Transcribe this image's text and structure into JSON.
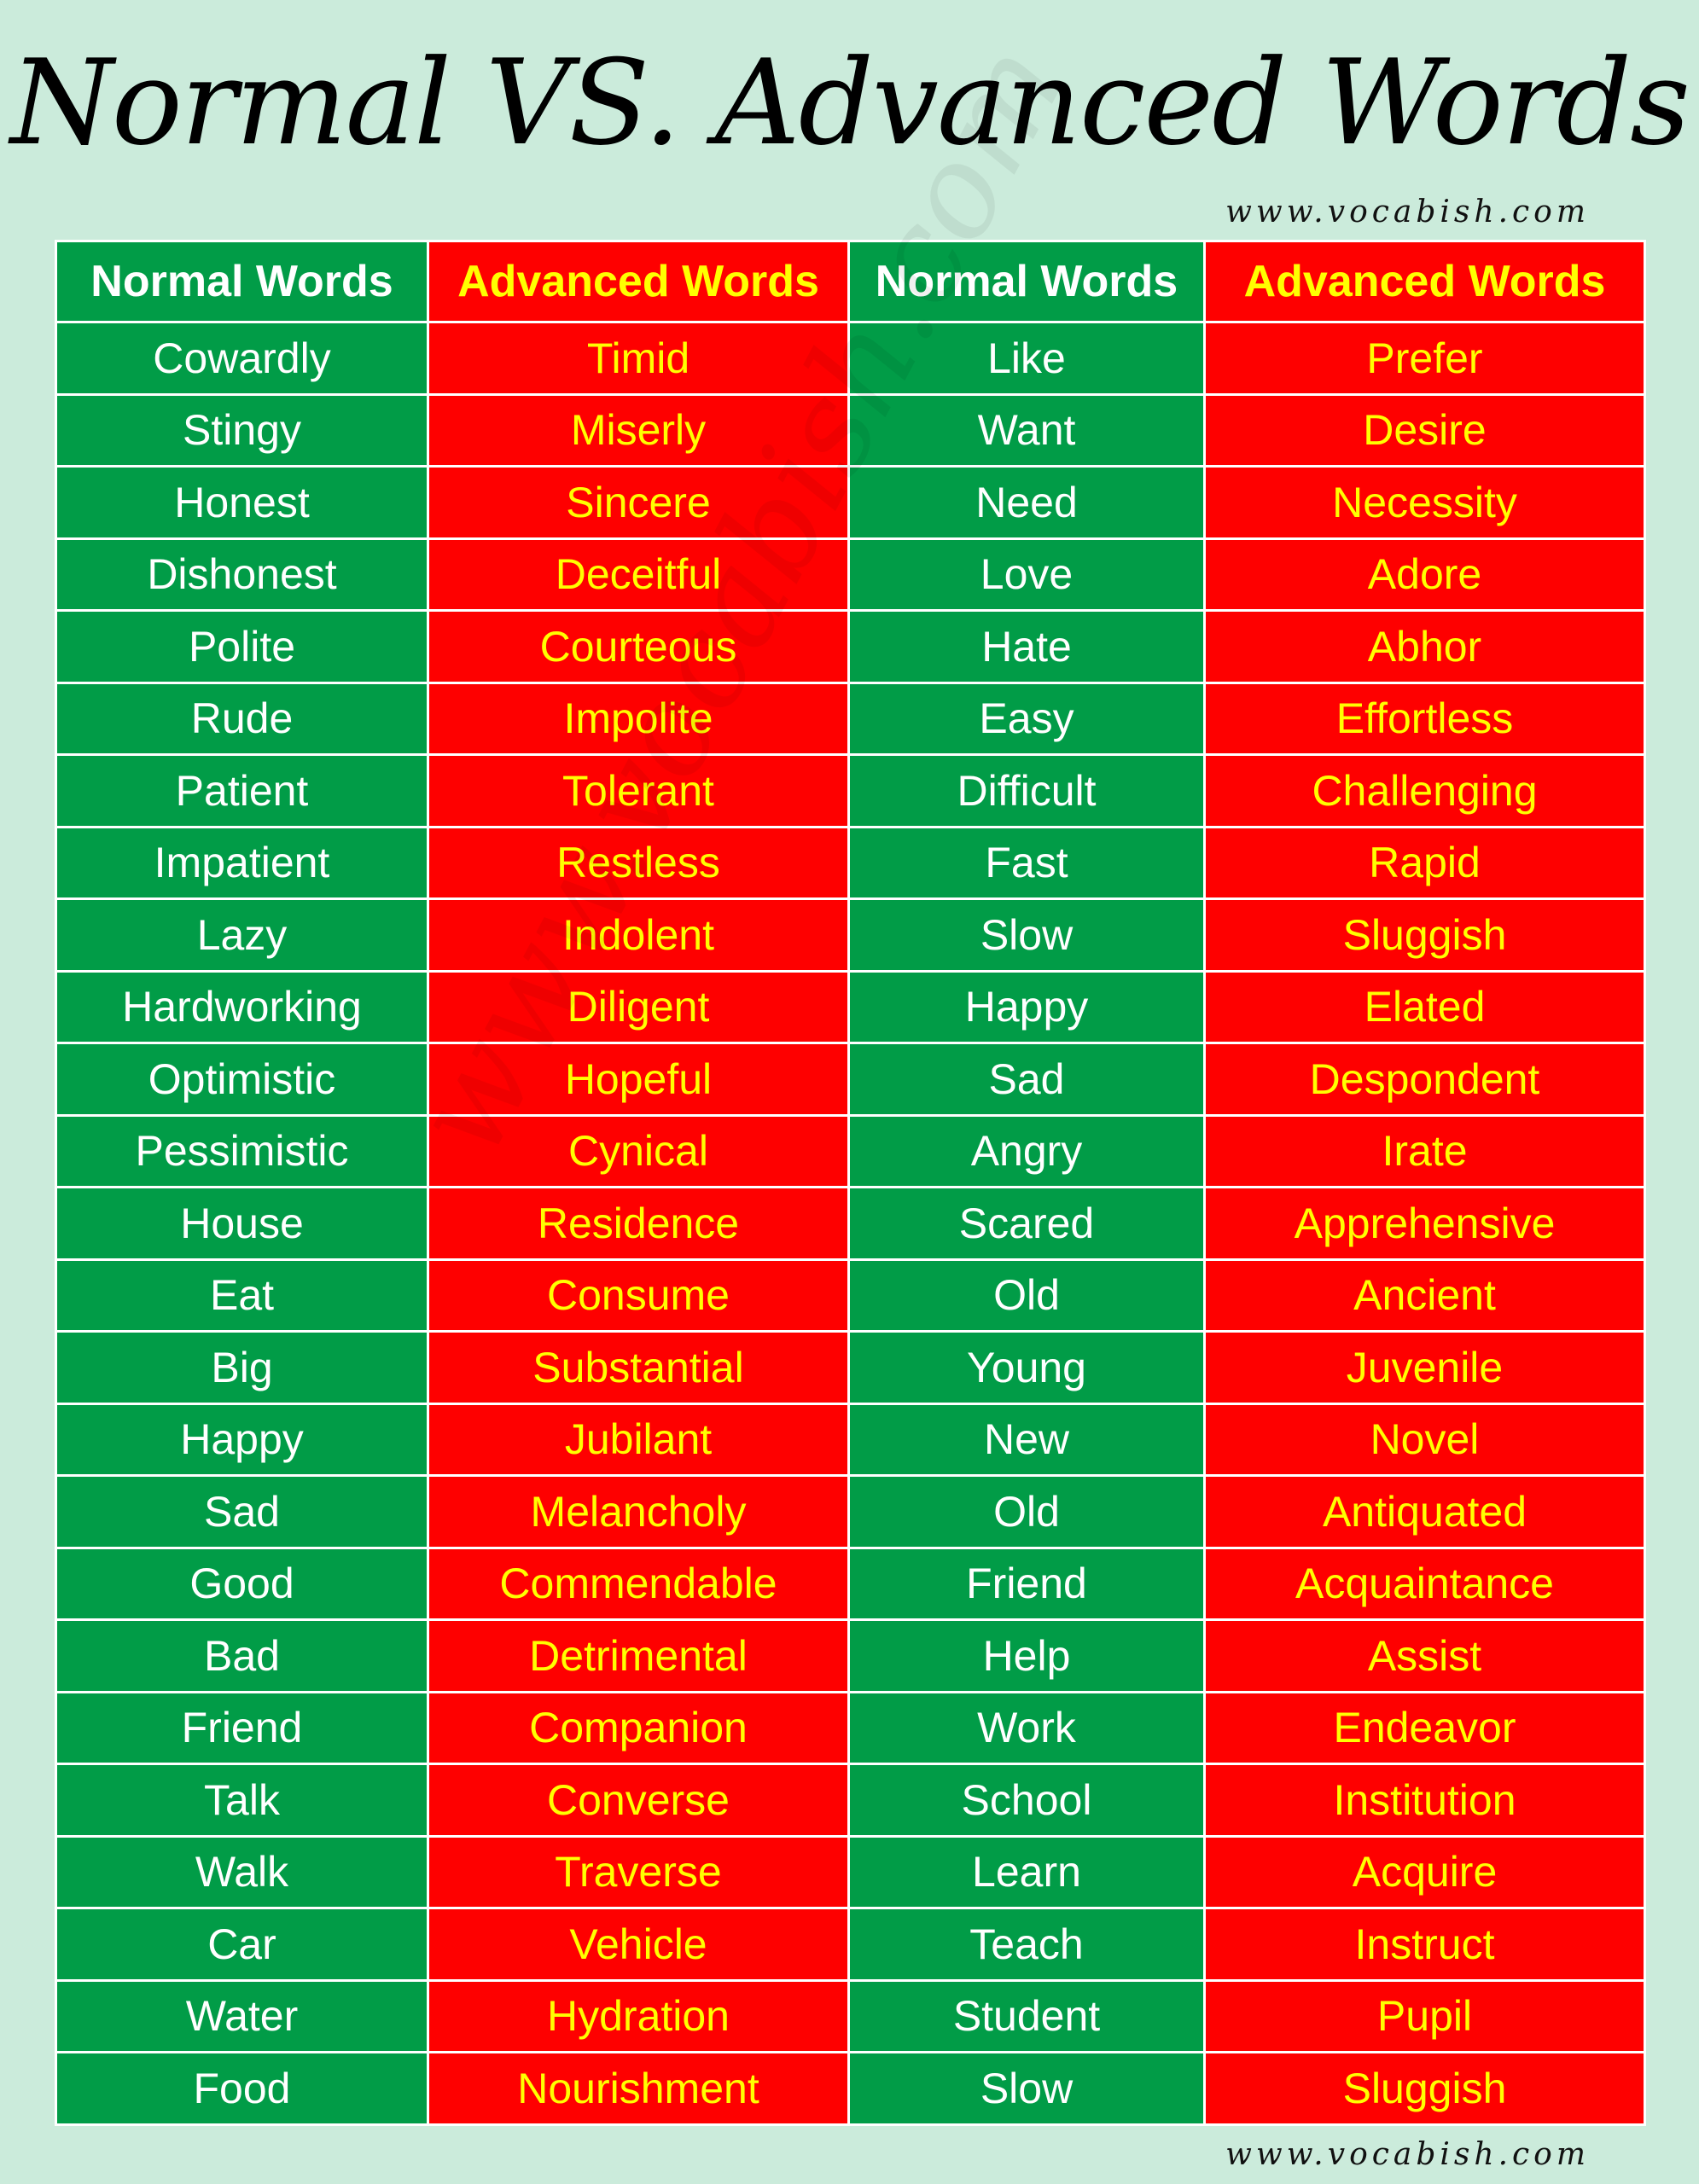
{
  "title": "Normal VS. Advanced Words",
  "website_top": "www.vocabish.com",
  "website_bottom": "www.vocabish.com",
  "watermark": "www.vocabish.com",
  "colors": {
    "background": "#cbebdb",
    "normal_cell": "#019c47",
    "advanced_cell": "#fe0000",
    "advanced_text": "#ffff00",
    "normal_text": "#ffffff"
  },
  "headers": [
    "Normal Words",
    "Advanced Words",
    "Normal Words",
    "Advanced Words"
  ],
  "rows": [
    [
      "Cowardly",
      "Timid",
      "Like",
      "Prefer"
    ],
    [
      "Stingy",
      "Miserly",
      "Want",
      "Desire"
    ],
    [
      "Honest",
      "Sincere",
      "Need",
      "Necessity"
    ],
    [
      "Dishonest",
      "Deceitful",
      "Love",
      "Adore"
    ],
    [
      "Polite",
      "Courteous",
      "Hate",
      "Abhor"
    ],
    [
      "Rude",
      "Impolite",
      "Easy",
      "Effortless"
    ],
    [
      "Patient",
      "Tolerant",
      "Difficult",
      "Challenging"
    ],
    [
      "Impatient",
      "Restless",
      "Fast",
      "Rapid"
    ],
    [
      "Lazy",
      "Indolent",
      "Slow",
      "Sluggish"
    ],
    [
      "Hardworking",
      "Diligent",
      "Happy",
      "Elated"
    ],
    [
      "Optimistic",
      "Hopeful",
      "Sad",
      "Despondent"
    ],
    [
      "Pessimistic",
      "Cynical",
      "Angry",
      "Irate"
    ],
    [
      "House",
      "Residence",
      "Scared",
      "Apprehensive"
    ],
    [
      "Eat",
      "Consume",
      "Old",
      "Ancient"
    ],
    [
      "Big",
      "Substantial",
      "Young",
      "Juvenile"
    ],
    [
      "Happy",
      "Jubilant",
      "New",
      "Novel"
    ],
    [
      "Sad",
      "Melancholy",
      "Old",
      "Antiquated"
    ],
    [
      "Good",
      "Commendable",
      "Friend",
      "Acquaintance"
    ],
    [
      "Bad",
      "Detrimental",
      "Help",
      "Assist"
    ],
    [
      "Friend",
      "Companion",
      "Work",
      "Endeavor"
    ],
    [
      "Talk",
      "Converse",
      "School",
      "Institution"
    ],
    [
      "Walk",
      "Traverse",
      "Learn",
      "Acquire"
    ],
    [
      "Car",
      "Vehicle",
      "Teach",
      "Instruct"
    ],
    [
      "Water",
      "Hydration",
      "Student",
      "Pupil"
    ],
    [
      "Food",
      "Nourishment",
      "Slow",
      "Sluggish"
    ]
  ]
}
